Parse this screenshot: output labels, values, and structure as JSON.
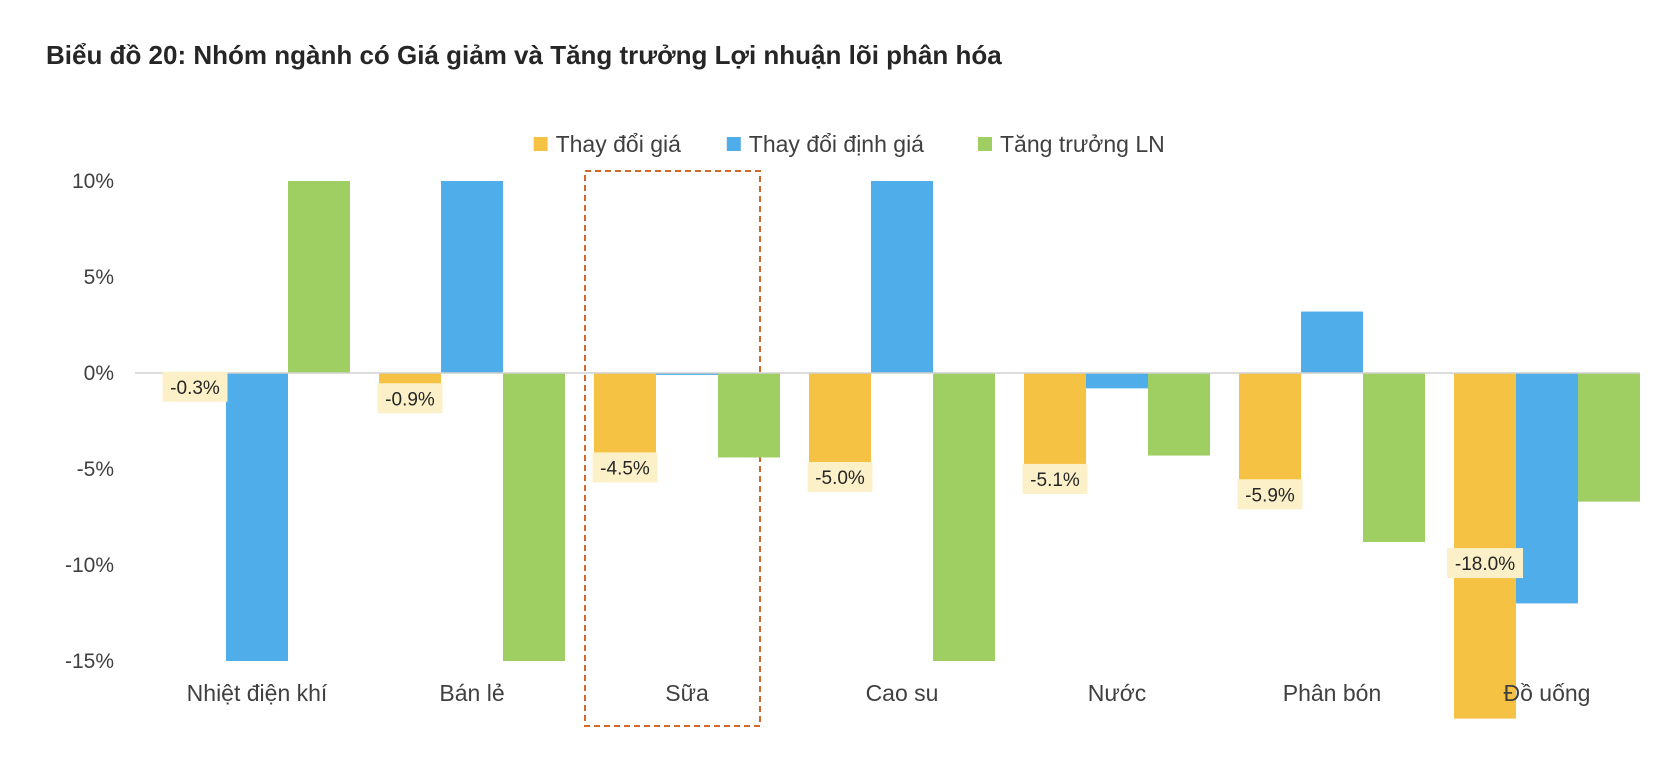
{
  "chart_data": {
    "type": "bar",
    "title": "Biểu đồ 20: Nhóm ngành có Giá giảm và Tăng trưởng Lợi nhuận lõi phân hóa",
    "xlabel": "",
    "ylabel": "",
    "ylim": [
      -15,
      10
    ],
    "yticks": [
      10,
      5,
      0,
      -5,
      -10,
      -15
    ],
    "ytick_labels": [
      "10%",
      "5%",
      "0%",
      "-5%",
      "-10%",
      "-15%"
    ],
    "categories": [
      "Nhiệt điện khí",
      "Bán lẻ",
      "Sữa",
      "Cao su",
      "Nước",
      "Phân bón",
      "Đồ uống"
    ],
    "series": [
      {
        "name": "Thay đổi giá",
        "color": "#F5C243",
        "values": [
          -0.3,
          -0.9,
          -4.5,
          -5.0,
          -5.1,
          -5.9,
          -18.0
        ],
        "data_labels": [
          "-0.3%",
          "-0.9%",
          "-4.5%",
          "-5.0%",
          "-5.1%",
          "-5.9%",
          "-18.0%"
        ]
      },
      {
        "name": "Thay đổi định giá",
        "color": "#4FADEA",
        "values": [
          -15.0,
          10.0,
          -0.1,
          10.0,
          -0.8,
          3.2,
          -12.0
        ]
      },
      {
        "name": "Tăng trưởng LN",
        "color": "#9FCF63",
        "values": [
          10.0,
          -15.0,
          -4.4,
          -15.0,
          -4.3,
          -8.8,
          -6.7
        ]
      }
    ],
    "legend_position": "top",
    "grid": false,
    "highlight": {
      "category": "Sữa",
      "style": "dashed-box",
      "color": "#D2692C"
    },
    "data_label_bg": "#FCF0C8"
  }
}
